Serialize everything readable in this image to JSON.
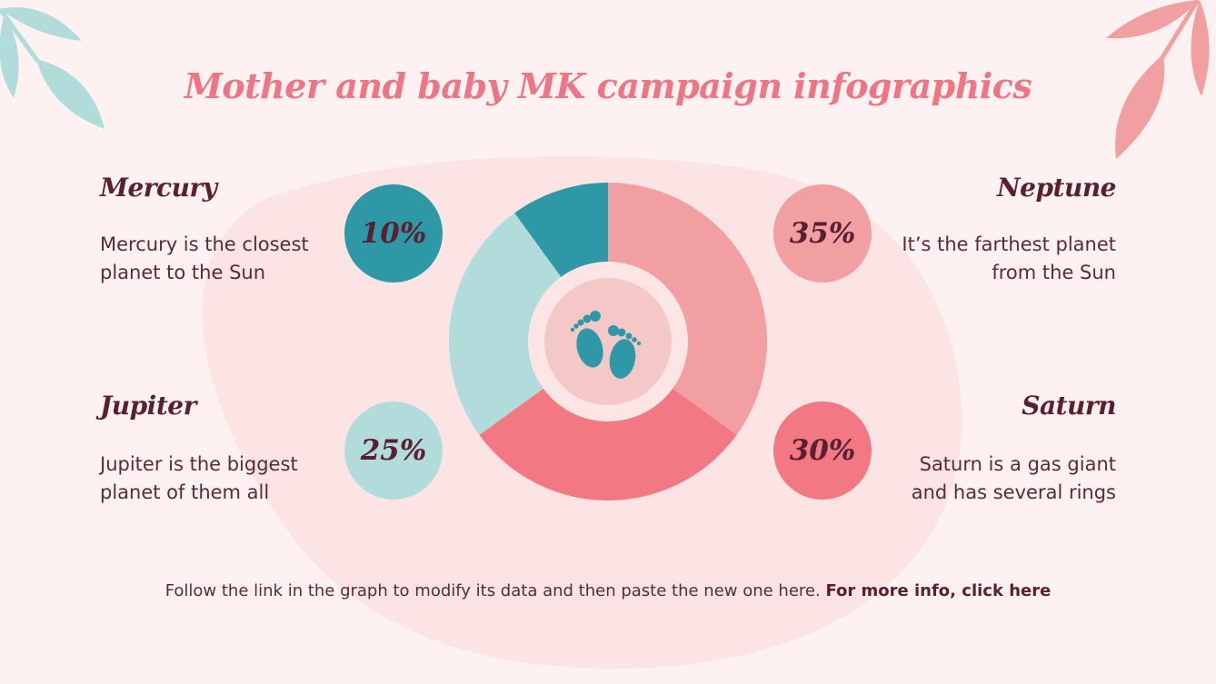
{
  "title": "Mother and baby MK campaign infographics",
  "colors": {
    "background": "#fdf2f1",
    "blob": "#fce4e4",
    "title": "#ee7584",
    "text_dark": "#5a2032",
    "teal_dark": "#2e98a7",
    "teal_light": "#b2dcdc",
    "pink_light": "#f29fa2",
    "pink_dark": "#f27884",
    "center_ring": "#fde5e5",
    "center_fill": "#f5c8c8"
  },
  "items": [
    {
      "name": "Mercury",
      "description_line1": "Mercury is the closest",
      "description_line2": "planet to the Sun",
      "percent_label": "10%",
      "color": "#2e98a7"
    },
    {
      "name": "Jupiter",
      "description_line1": "Jupiter is the biggest",
      "description_line2": "planet of them all",
      "percent_label": "25%",
      "color": "#b2dcdc"
    },
    {
      "name": "Neptune",
      "description_line1": "It’s the farthest planet",
      "description_line2": "from the Sun",
      "percent_label": "35%",
      "color": "#f29fa2"
    },
    {
      "name": "Saturn",
      "description_line1": "Saturn is a gas giant",
      "description_line2": "and has several rings",
      "percent_label": "30%",
      "color": "#f27884"
    }
  ],
  "center_icon": "baby-feet-icon",
  "footer": {
    "text": "Follow the link in the graph to modify its data and then paste the new one here. ",
    "link_text": "For more info, click here"
  },
  "chart_data": {
    "type": "pie",
    "subtype": "donut",
    "title": "Mother and baby MK campaign infographics",
    "categories": [
      "Neptune",
      "Saturn",
      "Jupiter",
      "Mercury"
    ],
    "values": [
      35,
      30,
      25,
      10
    ],
    "unit": "%",
    "colors": [
      "#f29fa2",
      "#f27884",
      "#b2dcdc",
      "#2e98a7"
    ],
    "start_angle": "12 o'clock, clockwise",
    "legend": "annotated badges around chart (left: Mercury, Jupiter; right: Neptune, Saturn)"
  }
}
